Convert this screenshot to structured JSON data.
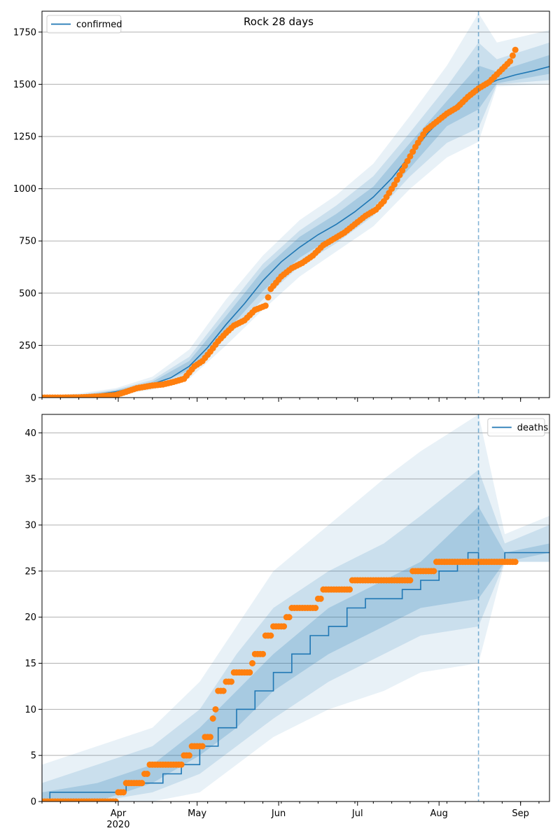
{
  "figure": {
    "title": "Rock 28 days"
  },
  "colors": {
    "model": "#1f77b4",
    "observed": "#ff7f0e",
    "grid": "#b0b0b0",
    "axis": "#000000"
  },
  "x_axis": {
    "tick_labels": [
      "Apr",
      "May",
      "Jun",
      "Jul",
      "Aug",
      "Sep"
    ],
    "year_label": "2020"
  },
  "chart_data": [
    {
      "type": "line",
      "title": "Rock 28 days",
      "legend": {
        "label": "confirmed",
        "position": "upper-left"
      },
      "ylim": [
        0,
        1850
      ],
      "yticks": [
        0,
        250,
        500,
        750,
        1000,
        1250,
        1500,
        1750
      ],
      "grid": "y",
      "xlim": [
        "2020-03-03",
        "2020-09-12"
      ],
      "forecast_start": "2020-08-16",
      "model": {
        "name": "confirmed",
        "points": [
          [
            "2020-03-03",
            0
          ],
          [
            "2020-03-10",
            2
          ],
          [
            "2020-03-17",
            6
          ],
          [
            "2020-03-24",
            15
          ],
          [
            "2020-03-31",
            28
          ],
          [
            "2020-04-07",
            45
          ],
          [
            "2020-04-14",
            65
          ],
          [
            "2020-04-21",
            95
          ],
          [
            "2020-04-28",
            150
          ],
          [
            "2020-05-05",
            240
          ],
          [
            "2020-05-12",
            350
          ],
          [
            "2020-05-19",
            450
          ],
          [
            "2020-05-26",
            560
          ],
          [
            "2020-06-02",
            650
          ],
          [
            "2020-06-09",
            720
          ],
          [
            "2020-06-16",
            780
          ],
          [
            "2020-06-23",
            830
          ],
          [
            "2020-06-30",
            890
          ],
          [
            "2020-07-07",
            960
          ],
          [
            "2020-07-14",
            1050
          ],
          [
            "2020-07-21",
            1160
          ],
          [
            "2020-07-28",
            1270
          ],
          [
            "2020-08-04",
            1360
          ],
          [
            "2020-08-11",
            1440
          ],
          [
            "2020-08-16",
            1480
          ],
          [
            "2020-08-23",
            1520
          ],
          [
            "2020-08-30",
            1545
          ],
          [
            "2020-09-06",
            1565
          ],
          [
            "2020-09-12",
            1585
          ]
        ]
      },
      "bands": [
        {
          "level": "outer",
          "points": [
            [
              "2020-03-03",
              -5,
              5
            ],
            [
              "2020-03-17",
              0,
              20
            ],
            [
              "2020-03-31",
              12,
              45
            ],
            [
              "2020-04-14",
              38,
              100
            ],
            [
              "2020-04-28",
              90,
              230
            ],
            [
              "2020-05-12",
              250,
              470
            ],
            [
              "2020-05-26",
              420,
              680
            ],
            [
              "2020-06-09",
              580,
              850
            ],
            [
              "2020-06-23",
              700,
              970
            ],
            [
              "2020-07-07",
              820,
              1120
            ],
            [
              "2020-07-21",
              1000,
              1350
            ],
            [
              "2020-08-04",
              1150,
              1590
            ],
            [
              "2020-08-16",
              1225,
              1840
            ],
            [
              "2020-08-23",
              1490,
              1700
            ],
            [
              "2020-09-12",
              1500,
              1760
            ]
          ]
        },
        {
          "level": "middle",
          "points": [
            [
              "2020-03-03",
              -3,
              3
            ],
            [
              "2020-03-17",
              2,
              14
            ],
            [
              "2020-03-31",
              18,
              38
            ],
            [
              "2020-04-14",
              48,
              85
            ],
            [
              "2020-04-28",
              110,
              195
            ],
            [
              "2020-05-12",
              290,
              420
            ],
            [
              "2020-05-26",
              470,
              640
            ],
            [
              "2020-06-09",
              630,
              800
            ],
            [
              "2020-06-23",
              740,
              920
            ],
            [
              "2020-07-07",
              870,
              1060
            ],
            [
              "2020-07-21",
              1060,
              1270
            ],
            [
              "2020-08-04",
              1220,
              1490
            ],
            [
              "2020-08-16",
              1290,
              1700
            ],
            [
              "2020-08-23",
              1500,
              1620
            ],
            [
              "2020-09-12",
              1520,
              1700
            ]
          ]
        },
        {
          "level": "inner",
          "points": [
            [
              "2020-03-03",
              -1,
              1
            ],
            [
              "2020-03-17",
              4,
              10
            ],
            [
              "2020-03-31",
              22,
              34
            ],
            [
              "2020-04-14",
              56,
              76
            ],
            [
              "2020-04-28",
              130,
              175
            ],
            [
              "2020-05-12",
              315,
              390
            ],
            [
              "2020-05-26",
              510,
              610
            ],
            [
              "2020-06-09",
              670,
              770
            ],
            [
              "2020-06-23",
              780,
              880
            ],
            [
              "2020-07-07",
              910,
              1010
            ],
            [
              "2020-07-21",
              1100,
              1220
            ],
            [
              "2020-08-04",
              1300,
              1420
            ],
            [
              "2020-08-16",
              1380,
              1590
            ],
            [
              "2020-08-23",
              1505,
              1560
            ],
            [
              "2020-09-12",
              1550,
              1640
            ]
          ]
        }
      ],
      "observed": {
        "name": "confirmed",
        "points": [
          [
            "2020-03-03",
            0
          ],
          [
            "2020-03-10",
            0
          ],
          [
            "2020-03-17",
            1
          ],
          [
            "2020-03-24",
            5
          ],
          [
            "2020-03-31",
            12
          ],
          [
            "2020-04-04",
            28
          ],
          [
            "2020-04-08",
            45
          ],
          [
            "2020-04-14",
            58
          ],
          [
            "2020-04-18",
            63
          ],
          [
            "2020-04-22",
            75
          ],
          [
            "2020-04-26",
            90
          ],
          [
            "2020-04-30",
            150
          ],
          [
            "2020-05-03",
            175
          ],
          [
            "2020-05-06",
            220
          ],
          [
            "2020-05-09",
            270
          ],
          [
            "2020-05-12",
            310
          ],
          [
            "2020-05-15",
            345
          ],
          [
            "2020-05-19",
            370
          ],
          [
            "2020-05-23",
            420
          ],
          [
            "2020-05-27",
            440
          ],
          [
            "2020-05-29",
            520
          ],
          [
            "2020-06-02",
            580
          ],
          [
            "2020-06-06",
            620
          ],
          [
            "2020-06-10",
            645
          ],
          [
            "2020-06-14",
            680
          ],
          [
            "2020-06-18",
            730
          ],
          [
            "2020-06-22",
            760
          ],
          [
            "2020-06-26",
            790
          ],
          [
            "2020-06-30",
            830
          ],
          [
            "2020-07-04",
            870
          ],
          [
            "2020-07-08",
            900
          ],
          [
            "2020-07-11",
            940
          ],
          [
            "2020-07-15",
            1020
          ],
          [
            "2020-07-19",
            1110
          ],
          [
            "2020-07-23",
            1200
          ],
          [
            "2020-07-27",
            1280
          ],
          [
            "2020-07-31",
            1320
          ],
          [
            "2020-08-04",
            1360
          ],
          [
            "2020-08-08",
            1390
          ],
          [
            "2020-08-12",
            1440
          ],
          [
            "2020-08-16",
            1480
          ],
          [
            "2020-08-20",
            1510
          ],
          [
            "2020-08-24",
            1560
          ],
          [
            "2020-08-28",
            1610
          ],
          [
            "2020-08-30",
            1665
          ]
        ]
      }
    },
    {
      "type": "line",
      "legend": {
        "label": "deaths",
        "position": "upper-right"
      },
      "ylim": [
        0,
        42
      ],
      "yticks": [
        0,
        5,
        10,
        15,
        20,
        25,
        30,
        35,
        40
      ],
      "grid": "y",
      "xlim": [
        "2020-03-03",
        "2020-09-12"
      ],
      "forecast_start": "2020-08-16",
      "model": {
        "name": "deaths",
        "points": [
          [
            "2020-03-03",
            0
          ],
          [
            "2020-03-06",
            1
          ],
          [
            "2020-04-04",
            2
          ],
          [
            "2020-04-18",
            3
          ],
          [
            "2020-04-25",
            4
          ],
          [
            "2020-05-02",
            6
          ],
          [
            "2020-05-09",
            8
          ],
          [
            "2020-05-16",
            10
          ],
          [
            "2020-05-23",
            12
          ],
          [
            "2020-05-30",
            14
          ],
          [
            "2020-06-06",
            16
          ],
          [
            "2020-06-13",
            18
          ],
          [
            "2020-06-20",
            19
          ],
          [
            "2020-06-27",
            21
          ],
          [
            "2020-07-04",
            22
          ],
          [
            "2020-07-18",
            23
          ],
          [
            "2020-07-25",
            24
          ],
          [
            "2020-08-01",
            25
          ],
          [
            "2020-08-08",
            26
          ],
          [
            "2020-08-12",
            27
          ],
          [
            "2020-08-16",
            26
          ],
          [
            "2020-08-26",
            27
          ],
          [
            "2020-09-12",
            27
          ]
        ]
      },
      "bands": [
        {
          "level": "outer",
          "points": [
            [
              "2020-03-03",
              0,
              4
            ],
            [
              "2020-03-24",
              0,
              6
            ],
            [
              "2020-04-14",
              0,
              8
            ],
            [
              "2020-05-02",
              1,
              13
            ],
            [
              "2020-05-16",
              4,
              19
            ],
            [
              "2020-05-30",
              7,
              25
            ],
            [
              "2020-06-20",
              10,
              30
            ],
            [
              "2020-07-11",
              12,
              35
            ],
            [
              "2020-07-25",
              14,
              38
            ],
            [
              "2020-08-16",
              15,
              42
            ],
            [
              "2020-08-26",
              26,
              29
            ],
            [
              "2020-09-12",
              26,
              31
            ]
          ]
        },
        {
          "level": "middle",
          "points": [
            [
              "2020-03-03",
              0,
              2
            ],
            [
              "2020-03-24",
              0,
              4
            ],
            [
              "2020-04-14",
              1,
              6
            ],
            [
              "2020-05-02",
              3,
              10
            ],
            [
              "2020-05-16",
              6,
              16
            ],
            [
              "2020-05-30",
              9,
              21
            ],
            [
              "2020-06-20",
              13,
              25
            ],
            [
              "2020-07-11",
              16,
              28
            ],
            [
              "2020-07-25",
              18,
              31
            ],
            [
              "2020-08-16",
              19,
              36
            ],
            [
              "2020-08-26",
              26,
              28
            ],
            [
              "2020-09-12",
              26,
              30
            ]
          ]
        },
        {
          "level": "inner",
          "points": [
            [
              "2020-03-03",
              0,
              1
            ],
            [
              "2020-03-24",
              0,
              2
            ],
            [
              "2020-04-14",
              2,
              4
            ],
            [
              "2020-05-02",
              5,
              8
            ],
            [
              "2020-05-16",
              8,
              12
            ],
            [
              "2020-05-30",
              12,
              16
            ],
            [
              "2020-06-20",
              16,
              21
            ],
            [
              "2020-07-11",
              19,
              24
            ],
            [
              "2020-07-25",
              21,
              26
            ],
            [
              "2020-08-16",
              22,
              32
            ],
            [
              "2020-08-26",
              26,
              27
            ],
            [
              "2020-09-12",
              27,
              28
            ]
          ]
        }
      ],
      "observed": {
        "name": "deaths",
        "points": [
          [
            "2020-03-03",
            0
          ],
          [
            "2020-03-30",
            0
          ],
          [
            "2020-04-01",
            1
          ],
          [
            "2020-04-04",
            2
          ],
          [
            "2020-04-11",
            3
          ],
          [
            "2020-04-13",
            4
          ],
          [
            "2020-04-26",
            5
          ],
          [
            "2020-04-29",
            6
          ],
          [
            "2020-05-04",
            7
          ],
          [
            "2020-05-07",
            9
          ],
          [
            "2020-05-08",
            10
          ],
          [
            "2020-05-09",
            12
          ],
          [
            "2020-05-12",
            13
          ],
          [
            "2020-05-15",
            14
          ],
          [
            "2020-05-22",
            15
          ],
          [
            "2020-05-23",
            16
          ],
          [
            "2020-05-27",
            18
          ],
          [
            "2020-05-30",
            19
          ],
          [
            "2020-06-04",
            20
          ],
          [
            "2020-06-06",
            21
          ],
          [
            "2020-06-16",
            22
          ],
          [
            "2020-06-18",
            23
          ],
          [
            "2020-06-29",
            24
          ],
          [
            "2020-07-22",
            25
          ],
          [
            "2020-07-31",
            26
          ],
          [
            "2020-08-30",
            26
          ]
        ]
      }
    }
  ]
}
